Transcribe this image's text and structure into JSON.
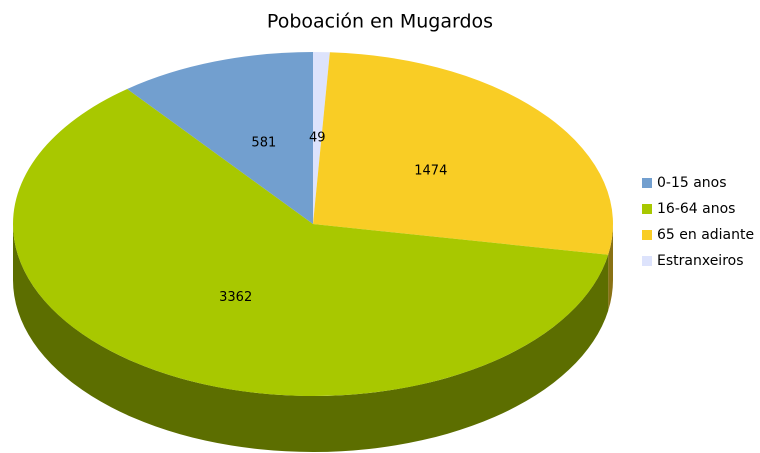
{
  "chart_data": {
    "type": "pie",
    "title": "Poboación en Mugardos",
    "categories": [
      "0-15 anos",
      "16-64 anos",
      "65 en adiante",
      "Estranxeiros"
    ],
    "values": [
      581,
      3362,
      1474,
      49
    ],
    "colors": [
      "#729fcf",
      "#a8c800",
      "#f9cd25",
      "#dde3fc"
    ],
    "legend": "right"
  }
}
